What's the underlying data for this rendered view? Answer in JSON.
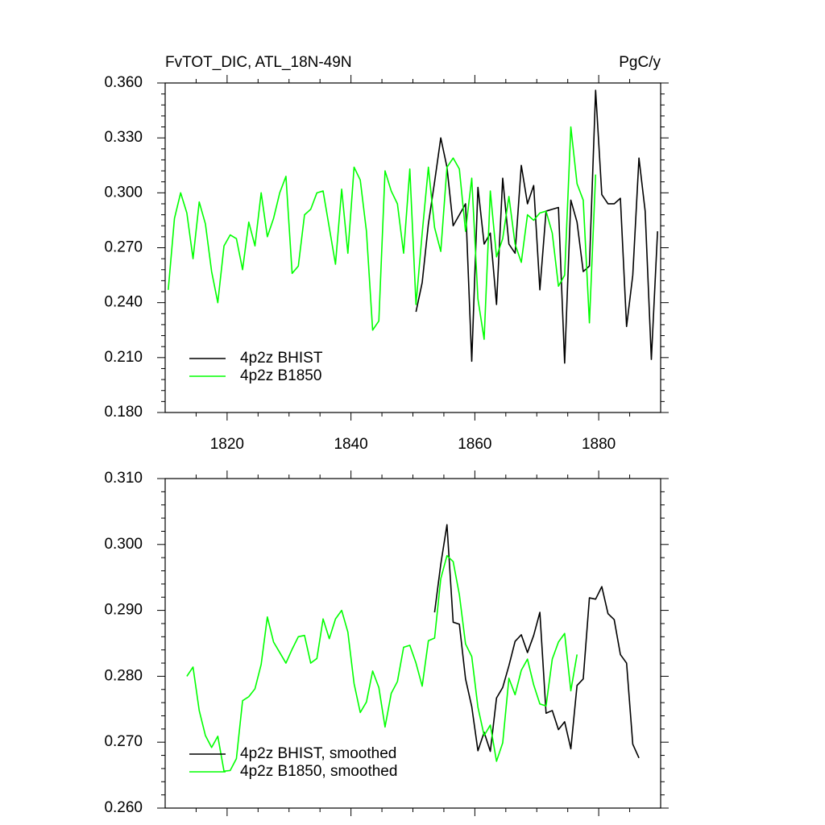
{
  "chart_data": [
    {
      "type": "line",
      "title": "FvTOT_DIC, ATL_18N-49N",
      "units": "PgC/y",
      "x": [
        1810.5,
        1811.5,
        1812.5,
        1813.5,
        1814.5,
        1815.5,
        1816.5,
        1817.5,
        1818.5,
        1819.5,
        1820.5,
        1821.5,
        1822.5,
        1823.5,
        1824.5,
        1825.5,
        1826.5,
        1827.5,
        1828.5,
        1829.5,
        1830.5,
        1831.5,
        1832.5,
        1833.5,
        1834.5,
        1835.5,
        1836.5,
        1837.5,
        1838.5,
        1839.5,
        1840.5,
        1841.5,
        1842.5,
        1843.5,
        1844.5,
        1845.5,
        1846.5,
        1847.5,
        1848.5,
        1849.5,
        1850.5,
        1851.5,
        1852.5,
        1853.5,
        1854.5,
        1855.5,
        1856.5,
        1857.5,
        1858.5,
        1859.5,
        1860.5,
        1861.5,
        1862.5,
        1863.5,
        1864.5,
        1865.5,
        1866.5,
        1867.5,
        1868.5,
        1869.5,
        1870.5,
        1871.5,
        1872.5,
        1873.5,
        1874.5,
        1875.5,
        1876.5,
        1877.5,
        1878.5,
        1879.5,
        1880.5,
        1881.5,
        1882.5,
        1883.5,
        1884.5,
        1885.5,
        1886.5,
        1887.5,
        1888.5,
        1889.5
      ],
      "series": [
        {
          "name": "4p2z BHIST",
          "color": "#000000",
          "values": [
            null,
            null,
            null,
            null,
            null,
            null,
            null,
            null,
            null,
            null,
            null,
            null,
            null,
            null,
            null,
            null,
            null,
            null,
            null,
            null,
            null,
            null,
            null,
            null,
            null,
            null,
            null,
            null,
            null,
            null,
            null,
            null,
            null,
            null,
            null,
            null,
            null,
            null,
            null,
            null,
            0.235,
            0.251,
            0.283,
            0.306,
            0.33,
            0.314,
            0.282,
            0.288,
            0.294,
            0.208,
            0.303,
            0.272,
            0.278,
            0.239,
            0.308,
            0.272,
            0.267,
            0.315,
            0.294,
            0.304,
            0.247,
            0.29,
            0.291,
            0.292,
            0.207,
            0.296,
            0.284,
            0.257,
            0.26,
            0.356,
            0.299,
            0.294,
            0.294,
            0.297,
            0.227,
            0.255,
            0.319,
            0.29,
            0.209,
            0.279
          ]
        },
        {
          "name": "4p2z B1850",
          "color": "#00ff00",
          "values": [
            0.247,
            0.286,
            0.3,
            0.289,
            0.264,
            0.295,
            0.283,
            0.257,
            0.24,
            0.271,
            0.277,
            0.275,
            0.258,
            0.284,
            0.271,
            0.3,
            0.276,
            0.286,
            0.3,
            0.309,
            0.256,
            0.26,
            0.288,
            0.291,
            0.3,
            0.301,
            0.281,
            0.261,
            0.302,
            0.267,
            0.314,
            0.307,
            0.279,
            0.225,
            0.23,
            0.312,
            0.301,
            0.294,
            0.267,
            0.313,
            0.239,
            0.278,
            0.314,
            0.281,
            0.268,
            0.314,
            0.319,
            0.313,
            0.279,
            0.308,
            0.242,
            0.22,
            0.301,
            0.265,
            0.275,
            0.298,
            0.272,
            0.262,
            0.288,
            0.285,
            0.289,
            0.29,
            0.278,
            0.249,
            0.255,
            0.336,
            0.305,
            0.296,
            0.229,
            0.31,
            null,
            null,
            null,
            null,
            null,
            null,
            null,
            null,
            null,
            null
          ]
        }
      ],
      "xlim": [
        1810,
        1890
      ],
      "xticks": [
        1820,
        1840,
        1860,
        1880
      ],
      "xtick_labels": true,
      "ylim": [
        0.18,
        0.36
      ],
      "yticks": [
        {
          "value": 0.18,
          "label": "0.180"
        },
        {
          "value": 0.21,
          "label": "0.210"
        },
        {
          "value": 0.24,
          "label": "0.240"
        },
        {
          "value": 0.27,
          "label": "0.270"
        },
        {
          "value": 0.3,
          "label": "0.300"
        },
        {
          "value": 0.33,
          "label": "0.330"
        },
        {
          "value": 0.36,
          "label": "0.360"
        }
      ],
      "legend": "lower left"
    },
    {
      "type": "line",
      "x": [
        1813.5,
        1814.5,
        1815.5,
        1816.5,
        1817.5,
        1818.5,
        1819.5,
        1820.5,
        1821.5,
        1822.5,
        1823.5,
        1824.5,
        1825.5,
        1826.5,
        1827.5,
        1828.5,
        1829.5,
        1830.5,
        1831.5,
        1832.5,
        1833.5,
        1834.5,
        1835.5,
        1836.5,
        1837.5,
        1838.5,
        1839.5,
        1840.5,
        1841.5,
        1842.5,
        1843.5,
        1844.5,
        1845.5,
        1846.5,
        1847.5,
        1848.5,
        1849.5,
        1850.5,
        1851.5,
        1852.5,
        1853.5,
        1854.5,
        1855.5,
        1856.5,
        1857.5,
        1858.5,
        1859.5,
        1860.5,
        1861.5,
        1862.5,
        1863.5,
        1864.5,
        1865.5,
        1866.5,
        1867.5,
        1868.5,
        1869.5,
        1870.5,
        1871.5,
        1872.5,
        1873.5,
        1874.5,
        1875.5,
        1876.5,
        1877.5,
        1878.5,
        1879.5,
        1880.5,
        1881.5,
        1882.5,
        1883.5,
        1884.5,
        1885.5,
        1886.5
      ],
      "series": [
        {
          "name": "4p2z BHIST, smoothed",
          "color": "#000000",
          "values": [
            null,
            null,
            null,
            null,
            null,
            null,
            null,
            null,
            null,
            null,
            null,
            null,
            null,
            null,
            null,
            null,
            null,
            null,
            null,
            null,
            null,
            null,
            null,
            null,
            null,
            null,
            null,
            null,
            null,
            null,
            null,
            null,
            null,
            null,
            null,
            null,
            null,
            null,
            null,
            null,
            0.2897,
            0.297,
            0.303,
            0.2882,
            0.2879,
            0.2796,
            0.2754,
            0.2687,
            0.2715,
            0.2686,
            0.2767,
            0.2783,
            0.2816,
            0.2853,
            0.2863,
            0.2836,
            0.2862,
            0.2897,
            0.2744,
            0.2748,
            0.2719,
            0.2731,
            0.269,
            0.2786,
            0.2796,
            0.2919,
            0.2917,
            0.2936,
            0.2895,
            0.2886,
            0.2833,
            0.282,
            0.2697,
            0.2676
          ]
        },
        {
          "name": "4p2z B1850, smoothed",
          "color": "#00ff00",
          "values": [
            0.28,
            0.2814,
            0.2748,
            0.271,
            0.2692,
            0.2709,
            0.2656,
            0.2657,
            0.2675,
            0.2763,
            0.2769,
            0.2781,
            0.2818,
            0.289,
            0.2852,
            0.2836,
            0.282,
            0.2841,
            0.286,
            0.2862,
            0.282,
            0.2827,
            0.2887,
            0.2857,
            0.2887,
            0.29,
            0.2867,
            0.2789,
            0.2745,
            0.2761,
            0.2808,
            0.2783,
            0.2723,
            0.2774,
            0.2792,
            0.2844,
            0.2847,
            0.282,
            0.2785,
            0.2854,
            0.2858,
            0.2948,
            0.2983,
            0.2974,
            0.2924,
            0.2849,
            0.283,
            0.2753,
            0.271,
            0.2726,
            0.2671,
            0.2699,
            0.2797,
            0.2772,
            0.2809,
            0.2826,
            0.2787,
            0.2758,
            0.2755,
            0.2826,
            0.2852,
            0.2865,
            0.2778,
            0.2833,
            null,
            null,
            null,
            null,
            null,
            null,
            null,
            null,
            null,
            null
          ]
        }
      ],
      "xlim": [
        1810,
        1890
      ],
      "xticks": [
        1820,
        1840,
        1860,
        1880
      ],
      "xtick_labels": false,
      "ylim": [
        0.26,
        0.31
      ],
      "yticks": [
        {
          "value": 0.26,
          "label": "0.260"
        },
        {
          "value": 0.27,
          "label": "0.270"
        },
        {
          "value": 0.28,
          "label": "0.280"
        },
        {
          "value": 0.29,
          "label": "0.290"
        },
        {
          "value": 0.3,
          "label": "0.300"
        },
        {
          "value": 0.31,
          "label": "0.310"
        }
      ],
      "legend": "lower left"
    }
  ]
}
